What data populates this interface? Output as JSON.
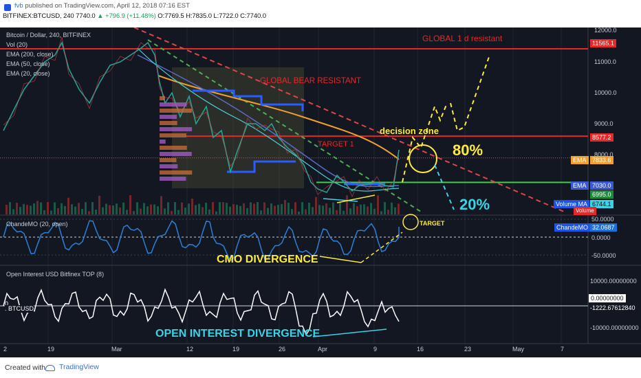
{
  "header": {
    "line1_user": "fvb",
    "line1_rest": " published on TradingView.com, April 12, 2018 07:16 EST",
    "symbol": "BITFINEX:BTCUSD, 240",
    "last": "7740.0",
    "change": "▲ +796.9 (+11.48%)",
    "ohlc": "O:7769.5 H:7835.0 L:7722.0 C:7740.0"
  },
  "legend": {
    "title": "Bitcoin / Dollar, 240, BITFINEX",
    "vol": "Vol (20)",
    "ema200": "EMA (200, close)",
    "ema50": "EMA (50, close)",
    "ema20": "EMA (20, close)"
  },
  "annotations": {
    "global_resistant": "GLOBAL 1 d resistant",
    "global_bear": "GLOBAL BEAR RESISTANT",
    "target1": "TARGET 1",
    "decision_zone": "decision zone",
    "pct_80": "80%",
    "pct_20": "20%",
    "target": "TARGET",
    "cmo_divergence": "CMO DIVERGENCE",
    "oi_divergence": "OPEN INTEREST DIVERGENCE"
  },
  "price_axis": {
    "ticks": [
      "12000.0",
      "11000.0",
      "10000.0",
      "9000.0",
      "8000.0"
    ],
    "tag_11565": "11565.1",
    "tag_8577": "8577.2",
    "tag_ema": "7833.6",
    "tag_ema_label": "EMA",
    "tag_7030": "7030.0",
    "tag_7030_label": "EMA",
    "tag_6995": "6995.0",
    "tag_6744": "6744.1",
    "tag_volma": "Volume MA",
    "tag_volume": "Volume"
  },
  "cmo": {
    "title": "ChandeMO (20, open)",
    "ticks": [
      "50.0000",
      "0.0000",
      "-50.0000"
    ],
    "tag_label": "ChandeMO",
    "tag_value": "32.0687"
  },
  "oi": {
    "title": "Open Interest USD Bitfinex TOP (8)",
    "ticks": [
      "10000.00000000",
      "0.00000000",
      "-10000.00000000"
    ],
    "tag_value": "-1222.67612840",
    "left_label": "0",
    "left_symbol": ". BTCUSD"
  },
  "time_axis": [
    "2",
    "19",
    "Mar",
    "12",
    "19",
    "26",
    "Apr",
    "9",
    "16",
    "23",
    "May",
    "7"
  ],
  "footer": {
    "created_with": "Created with",
    "brand": "TradingView"
  },
  "colors": {
    "background": "#131722",
    "price_line": "#26a69a",
    "resistant_red": "#e52929",
    "bear_dash": "#e04545",
    "green_dash": "#4caf50",
    "ema200": "#f0a030",
    "ema50": "#5b6bc8",
    "ema20": "#4dd0e1",
    "annotation_yellow": "#ffeb3b",
    "cyan": "#3ad3e8",
    "cmo_line": "#2f7fd8"
  },
  "chart_data": {
    "type": "line",
    "title": "Bitcoin / Dollar, 240, BITFINEX",
    "xlabel": "",
    "ylabel": "",
    "ylim": [
      5900,
      12200
    ],
    "x_categories": [
      "Feb 12",
      "Feb 19",
      "Mar 1",
      "Mar 12",
      "Mar 19",
      "Mar 26",
      "Apr 1",
      "Apr 9",
      "Apr 12"
    ],
    "series": [
      {
        "name": "BTCUSD",
        "x": [
          "Feb 12",
          "Feb 19",
          "Mar 1",
          "Mar 5",
          "Mar 12",
          "Mar 19",
          "Mar 26",
          "Apr 1",
          "Apr 9",
          "Apr 12"
        ],
        "values": [
          8500,
          10700,
          10400,
          11600,
          9200,
          8300,
          8200,
          6700,
          7000,
          7740
        ]
      }
    ],
    "levels": {
      "global_1d_resistant": 11565.1,
      "target_1": 8577.2,
      "support": 6995.0
    },
    "grid": true
  }
}
